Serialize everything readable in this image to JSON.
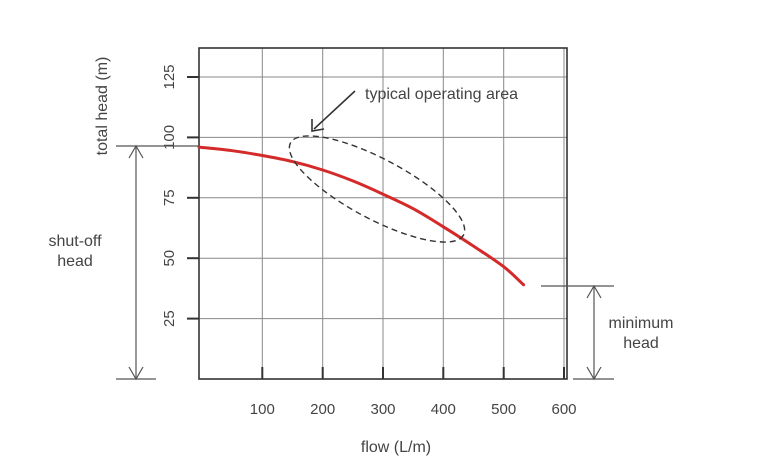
{
  "chart_data": {
    "type": "line",
    "xlabel": "flow (L/m)",
    "ylabel": "total head (m)",
    "xlim": [
      -5,
      605
    ],
    "ylim": [
      0,
      137
    ],
    "x_ticks": [
      100,
      200,
      300,
      400,
      500,
      600
    ],
    "y_ticks": [
      25,
      50,
      75,
      100,
      125
    ],
    "grid": true,
    "series": [
      {
        "color": "#d42a2a",
        "points": [
          [
            -5,
            96
          ],
          [
            50,
            94.5
          ],
          [
            100,
            92.5
          ],
          [
            150,
            90
          ],
          [
            200,
            86.5
          ],
          [
            250,
            82
          ],
          [
            300,
            76.5
          ],
          [
            350,
            70.5
          ],
          [
            400,
            63
          ],
          [
            450,
            55
          ],
          [
            500,
            46.5
          ],
          [
            533,
            39
          ]
        ]
      }
    ],
    "annotations": {
      "operating_area": "typical operating area",
      "shutoff_head": [
        "shut-off",
        "head"
      ],
      "minimum_head": [
        "minimum",
        "head"
      ]
    }
  }
}
